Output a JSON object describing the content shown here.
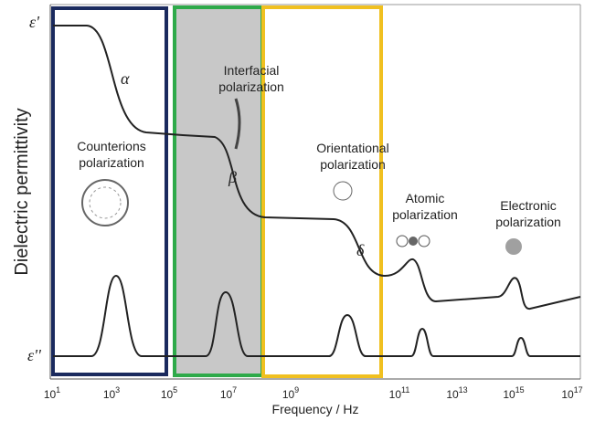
{
  "y_axis": {
    "title": "Dielectric permittivity",
    "top_label": "ε'",
    "bottom_label": "ε''"
  },
  "x_axis": {
    "title": "Frequency / Hz",
    "ticks": [
      {
        "base": "10",
        "exponent": "1"
      },
      {
        "base": "10",
        "exponent": "3"
      },
      {
        "base": "10",
        "exponent": "5"
      },
      {
        "base": "10",
        "exponent": "7"
      },
      {
        "base": "10",
        "exponent": "9"
      },
      {
        "base": "10",
        "exponent": "11"
      },
      {
        "base": "10",
        "exponent": "13"
      },
      {
        "base": "10",
        "exponent": "15"
      },
      {
        "base": "10",
        "exponent": "17"
      }
    ]
  },
  "relaxations": [
    "α",
    "β",
    "δ"
  ],
  "annotations": [
    {
      "lines": [
        "Interfacial",
        "polarization"
      ]
    },
    {
      "lines": [
        "Counterions",
        "polarization"
      ]
    },
    {
      "lines": [
        "Orientational",
        "polarization"
      ]
    },
    {
      "lines": [
        "Atomic",
        "polarization"
      ]
    },
    {
      "lines": [
        "Electronic",
        "polarization"
      ]
    }
  ]
}
